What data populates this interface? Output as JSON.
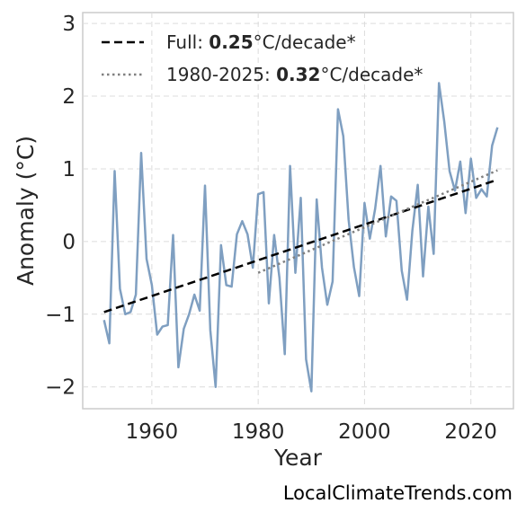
{
  "chart_data": {
    "type": "line",
    "xlabel": "Year",
    "ylabel": "Anomaly (°C)",
    "xlim": [
      1947,
      2028
    ],
    "ylim": [
      -2.3,
      3.15
    ],
    "xticks": [
      1960,
      1980,
      2000,
      2020
    ],
    "yticks": [
      3,
      2,
      1,
      0,
      -1,
      -2
    ],
    "ytick_labels": [
      "3",
      "2",
      "1",
      "0",
      "−1",
      "−2"
    ],
    "grid": true,
    "legend_position": "top-left",
    "series": [
      {
        "style": "solid",
        "color": "#7f9fc1",
        "x": [
          1951,
          1952,
          1953,
          1954,
          1955,
          1956,
          1957,
          1958,
          1959,
          1960,
          1961,
          1962,
          1963,
          1964,
          1965,
          1966,
          1967,
          1968,
          1969,
          1970,
          1971,
          1972,
          1973,
          1974,
          1975,
          1976,
          1977,
          1978,
          1979,
          1980,
          1981,
          1982,
          1983,
          1984,
          1985,
          1986,
          1987,
          1988,
          1989,
          1990,
          1991,
          1992,
          1993,
          1994,
          1995,
          1996,
          1997,
          1998,
          1999,
          2000,
          2001,
          2002,
          2003,
          2004,
          2005,
          2006,
          2007,
          2008,
          2009,
          2010,
          2011,
          2012,
          2013,
          2014,
          2015,
          2016,
          2017,
          2018,
          2019,
          2020,
          2021,
          2022,
          2023,
          2024,
          2025
        ],
        "values": [
          -1.08,
          -1.4,
          0.97,
          -0.65,
          -1.0,
          -0.97,
          -0.73,
          1.22,
          -0.24,
          -0.6,
          -1.28,
          -1.17,
          -1.15,
          0.09,
          -1.73,
          -1.2,
          -1.0,
          -0.73,
          -0.95,
          0.77,
          -1.22,
          -2.0,
          -0.05,
          -0.6,
          -0.62,
          0.1,
          0.28,
          0.1,
          -0.36,
          0.65,
          0.68,
          -0.85,
          0.09,
          -0.5,
          -1.55,
          1.04,
          -0.43,
          0.6,
          -1.62,
          -2.06,
          0.58,
          -0.36,
          -0.87,
          -0.55,
          1.82,
          1.45,
          0.3,
          -0.35,
          -0.75,
          0.53,
          0.04,
          0.45,
          1.04,
          0.07,
          0.62,
          0.56,
          -0.4,
          -0.8,
          0.15,
          0.78,
          -0.48,
          0.48,
          -0.17,
          2.18,
          1.65,
          0.97,
          0.7,
          1.1,
          0.39,
          1.14,
          0.6,
          0.72,
          0.62,
          1.32,
          1.57
        ]
      },
      {
        "name": "Full",
        "style": "dashed",
        "color": "#000000",
        "x": [
          1951,
          2025
        ],
        "values": [
          -0.97,
          0.85
        ]
      },
      {
        "name": "1980-2025",
        "style": "dotted",
        "color": "#808080",
        "x": [
          1980,
          2025
        ],
        "values": [
          -0.43,
          0.98
        ]
      }
    ],
    "legend": [
      {
        "prefix": "Full: ",
        "value": "0.25",
        "suffix": "°C/decade*",
        "style": "dashed",
        "color": "#000000"
      },
      {
        "prefix": "1980-2025: ",
        "value": "0.32",
        "suffix": "°C/decade*",
        "style": "dotted",
        "color": "#808080"
      }
    ]
  },
  "credit": "LocalClimateTrends.com"
}
